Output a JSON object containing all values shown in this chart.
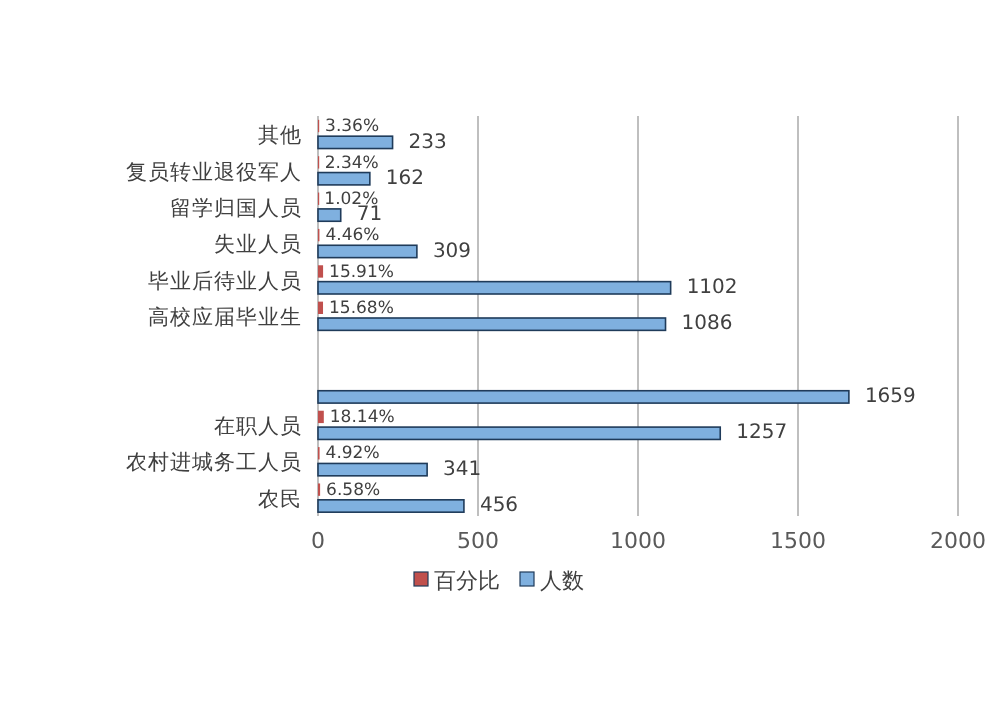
{
  "chart_data": {
    "type": "bar",
    "orientation": "horizontal",
    "categories": [
      "其他",
      "复员转业退役军人",
      "留学归国人员",
      "失业人员",
      "毕业后待业人员",
      "高校应届毕业生",
      null,
      null,
      "在职人员",
      "农村进城务工人员",
      "农民"
    ],
    "series": [
      {
        "name": "百分比",
        "color": "#c0504d",
        "values": [
          3.36,
          2.34,
          1.02,
          4.46,
          15.91,
          15.68,
          null,
          null,
          18.14,
          4.92,
          6.58
        ],
        "value_labels": [
          "3.36%",
          "2.34%",
          "1.02%",
          "4.46%",
          "15.91%",
          "15.68%",
          null,
          null,
          "18.14%",
          "4.92%",
          "6.58%"
        ]
      },
      {
        "name": "人数",
        "color": "#7fb0df",
        "values": [
          233,
          162,
          71,
          309,
          1102,
          1086,
          null,
          1659,
          1257,
          341,
          456
        ],
        "value_labels": [
          "233",
          "162",
          "71",
          "309",
          "1102",
          "1086",
          null,
          "1659",
          "1257",
          "341",
          "456"
        ]
      }
    ],
    "xlim": [
      0,
      2000
    ],
    "xticks": [
      0,
      500,
      1000,
      1500,
      2000
    ],
    "grid": "x",
    "legend": "bottom"
  }
}
